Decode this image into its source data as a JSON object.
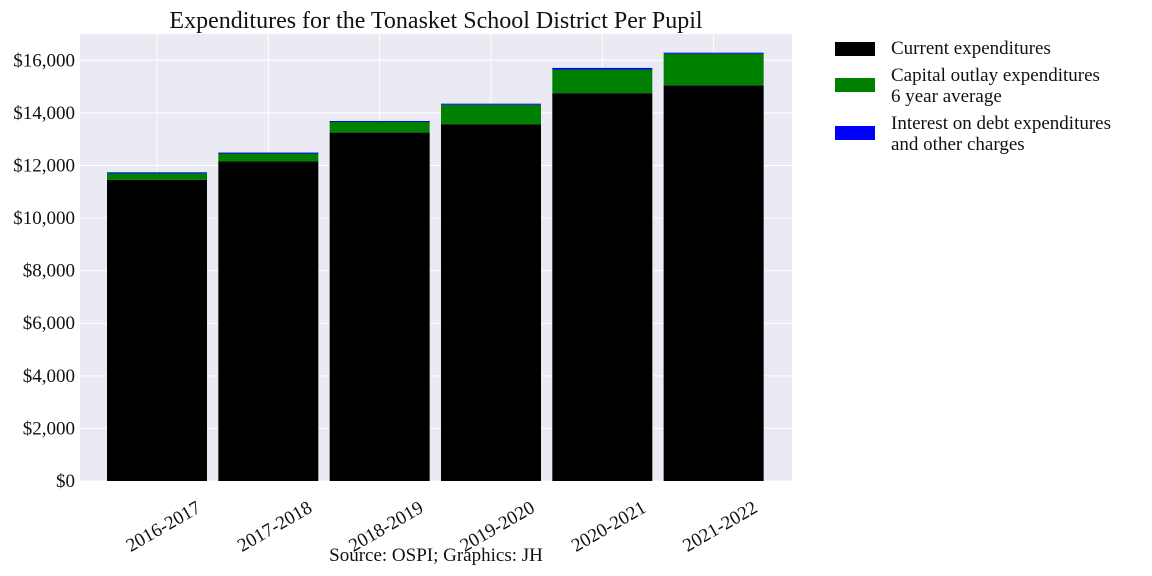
{
  "chart_data": {
    "type": "bar",
    "stacked": true,
    "title": "Expenditures for the Tonasket School District Per Pupil",
    "xlabel": "",
    "ylabel": "",
    "caption": "Source: OSPI; Graphics: JH",
    "categories": [
      "2016-2017",
      "2017-2018",
      "2018-2019",
      "2019-2020",
      "2020-2021",
      "2021-2022"
    ],
    "ylim": [
      0,
      17000
    ],
    "yticks": [
      0,
      2000,
      4000,
      6000,
      8000,
      10000,
      12000,
      14000,
      16000
    ],
    "ytick_labels": [
      "$0",
      "$2,000",
      "$4,000",
      "$6,000",
      "$8,000",
      "$10,000",
      "$12,000",
      "$14,000",
      "$16,000"
    ],
    "grid": true,
    "legend_position": "outside-right-top",
    "series": [
      {
        "name": "Current expenditures",
        "color": "#000000",
        "values": [
          11450,
          12150,
          13250,
          13570,
          14750,
          15050
        ]
      },
      {
        "name": "Capital outlay expenditures\n6 year average",
        "color": "#008000",
        "values": [
          280,
          330,
          430,
          740,
          900,
          1200
        ]
      },
      {
        "name": "Interest on debt expenditures\nand other charges",
        "color": "#0000ff",
        "values": [
          10,
          10,
          10,
          40,
          60,
          40
        ]
      }
    ]
  },
  "colors": {
    "plot_background": "#e9eaf2",
    "grid": "#ffffff"
  }
}
